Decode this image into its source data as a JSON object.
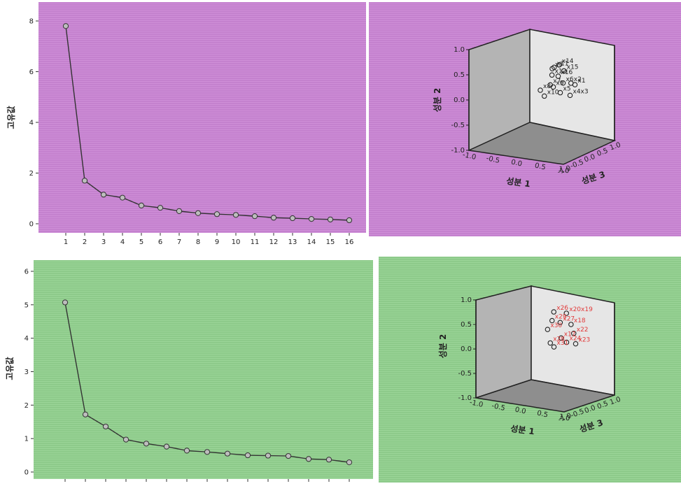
{
  "colors": {
    "top_bg": "#cf8fd8",
    "top_stripe": "#b873c3",
    "bottom_bg": "#9bd598",
    "bottom_stripe": "#7fbf7c",
    "line": "#333333",
    "point_fill": "#bdbdbd",
    "label_red": "#e23a3a",
    "label_dark": "#222222"
  },
  "chart_data": [
    {
      "type": "line",
      "ylabel": "고유값",
      "x": [
        1,
        2,
        3,
        4,
        5,
        6,
        7,
        8,
        9,
        10,
        11,
        12,
        13,
        14,
        15,
        16
      ],
      "x_tick_labels": [
        "1",
        "2",
        "3",
        "4",
        "5",
        "6",
        "7",
        "8",
        "9",
        "10",
        "11",
        "12",
        "13",
        "14",
        "15",
        "16"
      ],
      "values": [
        7.8,
        1.7,
        1.15,
        1.03,
        0.72,
        0.63,
        0.5,
        0.42,
        0.38,
        0.35,
        0.3,
        0.24,
        0.22,
        0.19,
        0.17,
        0.14
      ],
      "ylim": [
        0,
        8
      ],
      "y_ticks": [
        0,
        2,
        4,
        6,
        8
      ],
      "y_tick_labels": [
        "0",
        "2",
        "4",
        "6",
        "8"
      ],
      "grid": false
    },
    {
      "type": "scatter",
      "projection": "3d",
      "xlabel": "성분 1",
      "ylabel": "성분 2",
      "zlabel": "성분 3",
      "axis_ticks": [
        "-1.0",
        "-0.5",
        "0.0",
        "0.5",
        "1.0"
      ],
      "range": [
        -1,
        1
      ],
      "label_color": "dark",
      "points": [
        {
          "label": "x14",
          "c1": 0.35,
          "c2": 0.78,
          "c3": 0.25
        },
        {
          "label": "x11",
          "c1": 0.25,
          "c2": 0.72,
          "c3": 0.2
        },
        {
          "label": "x3",
          "c1": 0.2,
          "c2": 0.68,
          "c3": 0.2
        },
        {
          "label": "x15",
          "c1": 0.45,
          "c2": 0.65,
          "c3": 0.3
        },
        {
          "label": "x12",
          "c1": 0.22,
          "c2": 0.55,
          "c3": 0.15
        },
        {
          "label": "x16",
          "c1": 0.3,
          "c2": 0.5,
          "c3": 0.3
        },
        {
          "label": "x6",
          "c1": 0.4,
          "c2": 0.35,
          "c3": 0.35
        },
        {
          "label": "x2",
          "c1": 0.55,
          "c2": 0.35,
          "c3": 0.45
        },
        {
          "label": "x7",
          "c1": 0.15,
          "c2": 0.3,
          "c3": 0.2
        },
        {
          "label": "x9",
          "c1": 0.2,
          "c2": 0.25,
          "c3": 0.25
        },
        {
          "label": "x1",
          "c1": 0.6,
          "c2": 0.3,
          "c3": 0.55
        },
        {
          "label": "x8",
          "c1": 0.0,
          "c2": 0.2,
          "c3": 0.0
        },
        {
          "label": "x5",
          "c1": 0.3,
          "c2": 0.1,
          "c3": 0.4
        },
        {
          "label": "x10",
          "c1": 0.05,
          "c2": 0.05,
          "c3": 0.1
        },
        {
          "label": "x4x3",
          "c1": 0.5,
          "c2": 0.05,
          "c3": 0.5
        }
      ]
    },
    {
      "type": "line",
      "ylabel": "고유값",
      "x": [
        1,
        2,
        3,
        4,
        5,
        6,
        7,
        8,
        9,
        10,
        11,
        12,
        13,
        14,
        15
      ],
      "x_tick_labels": [],
      "values": [
        5.07,
        1.72,
        1.36,
        0.97,
        0.85,
        0.76,
        0.64,
        0.6,
        0.55,
        0.5,
        0.49,
        0.48,
        0.39,
        0.37,
        0.29
      ],
      "ylim": [
        0,
        6
      ],
      "y_ticks": [
        0,
        1,
        2,
        3,
        4,
        5,
        6
      ],
      "y_tick_labels": [
        "0",
        "1",
        "2",
        "3",
        "4",
        "5",
        "6"
      ],
      "grid": false
    },
    {
      "type": "scatter",
      "projection": "3d",
      "xlabel": "성분 1",
      "ylabel": "성분 2",
      "zlabel": "성분 3",
      "axis_ticks": [
        "-1.0",
        "-0.5",
        "0.0",
        "0.5",
        "1.0"
      ],
      "range": [
        -1,
        1
      ],
      "label_color": "red",
      "points": [
        {
          "label": "x26",
          "c1": 0.2,
          "c2": 0.75,
          "c3": 0.1
        },
        {
          "label": "x20x19",
          "c1": 0.45,
          "c2": 0.72,
          "c3": 0.3
        },
        {
          "label": "x29",
          "c1": 0.15,
          "c2": 0.55,
          "c3": 0.1
        },
        {
          "label": "x27",
          "c1": 0.3,
          "c2": 0.5,
          "c3": 0.25
        },
        {
          "label": "x18",
          "c1": 0.5,
          "c2": 0.45,
          "c3": 0.45
        },
        {
          "label": "x30",
          "c1": 0.05,
          "c2": 0.35,
          "c3": 0.05
        },
        {
          "label": "x22",
          "c1": 0.55,
          "c2": 0.25,
          "c3": 0.5
        },
        {
          "label": "x17",
          "c1": 0.3,
          "c2": 0.15,
          "c3": 0.3
        },
        {
          "label": "x28",
          "c1": 0.1,
          "c2": 0.05,
          "c3": 0.1
        },
        {
          "label": "x24",
          "c1": 0.4,
          "c2": 0.05,
          "c3": 0.4
        },
        {
          "label": "x23",
          "c1": 0.55,
          "c2": 0.0,
          "c3": 0.6
        },
        {
          "label": "x31",
          "c1": 0.15,
          "c2": -0.05,
          "c3": 0.2
        }
      ]
    }
  ]
}
